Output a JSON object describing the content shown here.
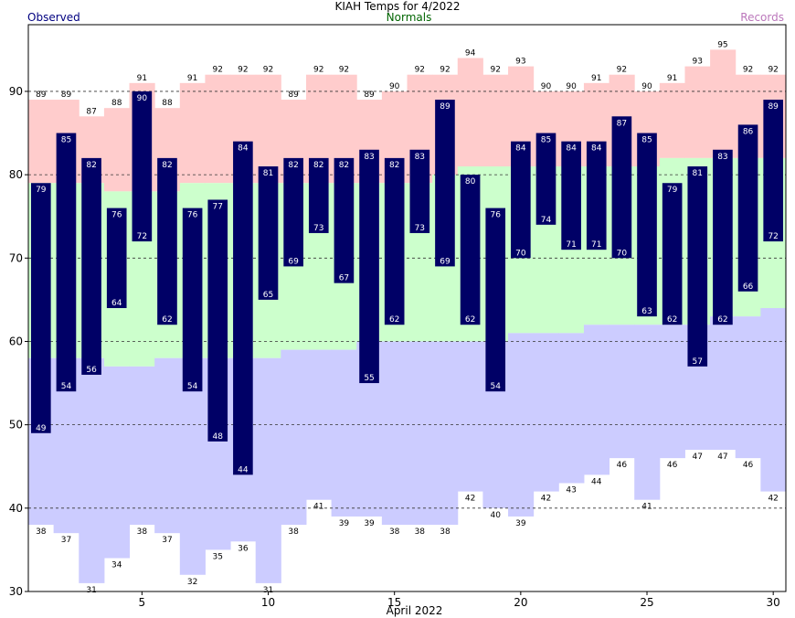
{
  "chart_data": {
    "type": "bar",
    "title": "KIAH Temps for 4/2022",
    "xlabel": "April 2022",
    "ylabel": "",
    "legend": {
      "observed": "Observed",
      "normals": "Normals",
      "records": "Records"
    },
    "days": [
      1,
      2,
      3,
      4,
      5,
      6,
      7,
      8,
      9,
      10,
      11,
      12,
      13,
      14,
      15,
      16,
      17,
      18,
      19,
      20,
      21,
      22,
      23,
      24,
      25,
      26,
      27,
      28,
      29,
      30
    ],
    "x_ticks": [
      5,
      10,
      15,
      20,
      25,
      30
    ],
    "y_ticks": [
      30,
      40,
      50,
      60,
      70,
      80,
      90
    ],
    "ylim": [
      30,
      98
    ],
    "grid": "dashed horizontal at 40, 50, 60, 70, 80, 90",
    "colors": {
      "observed": "#000066",
      "normal": "#ccffcc",
      "record_high": "#ffcccc",
      "record_low": "#ccccff",
      "observed_label": "#000080",
      "normals_label": "#006400",
      "records_label": "#bb77bb"
    },
    "series": [
      {
        "name": "Observed High",
        "values": [
          79,
          85,
          82,
          76,
          90,
          82,
          76,
          77,
          84,
          81,
          82,
          82,
          82,
          83,
          82,
          83,
          89,
          80,
          76,
          84,
          85,
          84,
          84,
          87,
          85,
          79,
          81,
          83,
          86,
          89
        ]
      },
      {
        "name": "Observed Low",
        "values": [
          49,
          54,
          56,
          64,
          72,
          62,
          54,
          48,
          44,
          65,
          69,
          73,
          67,
          55,
          62,
          73,
          69,
          62,
          54,
          70,
          74,
          71,
          71,
          70,
          63,
          62,
          57,
          62,
          66,
          72
        ]
      },
      {
        "name": "Normal High",
        "values": [
          79,
          79,
          79,
          78,
          78,
          78,
          79,
          79,
          79,
          79,
          79,
          79,
          79,
          79,
          79,
          79,
          80,
          81,
          81,
          81,
          81,
          81,
          81,
          81,
          81,
          82,
          82,
          82,
          82,
          82
        ]
      },
      {
        "name": "Normal Low",
        "values": [
          58,
          58,
          58,
          57,
          57,
          58,
          58,
          58,
          58,
          58,
          59,
          59,
          59,
          60,
          60,
          60,
          60,
          60,
          60,
          61,
          61,
          61,
          62,
          62,
          62,
          62,
          62,
          63,
          63,
          64
        ]
      },
      {
        "name": "Record High",
        "values": [
          89,
          89,
          87,
          88,
          91,
          88,
          91,
          92,
          92,
          92,
          89,
          92,
          92,
          89,
          90,
          92,
          92,
          94,
          92,
          93,
          90,
          90,
          91,
          92,
          90,
          91,
          93,
          95,
          92,
          92
        ]
      },
      {
        "name": "Record Low",
        "values": [
          38,
          37,
          31,
          34,
          38,
          37,
          32,
          35,
          36,
          31,
          38,
          41,
          39,
          39,
          38,
          38,
          38,
          42,
          40,
          39,
          42,
          43,
          44,
          46,
          41,
          46,
          47,
          47,
          46,
          42
        ]
      }
    ]
  }
}
